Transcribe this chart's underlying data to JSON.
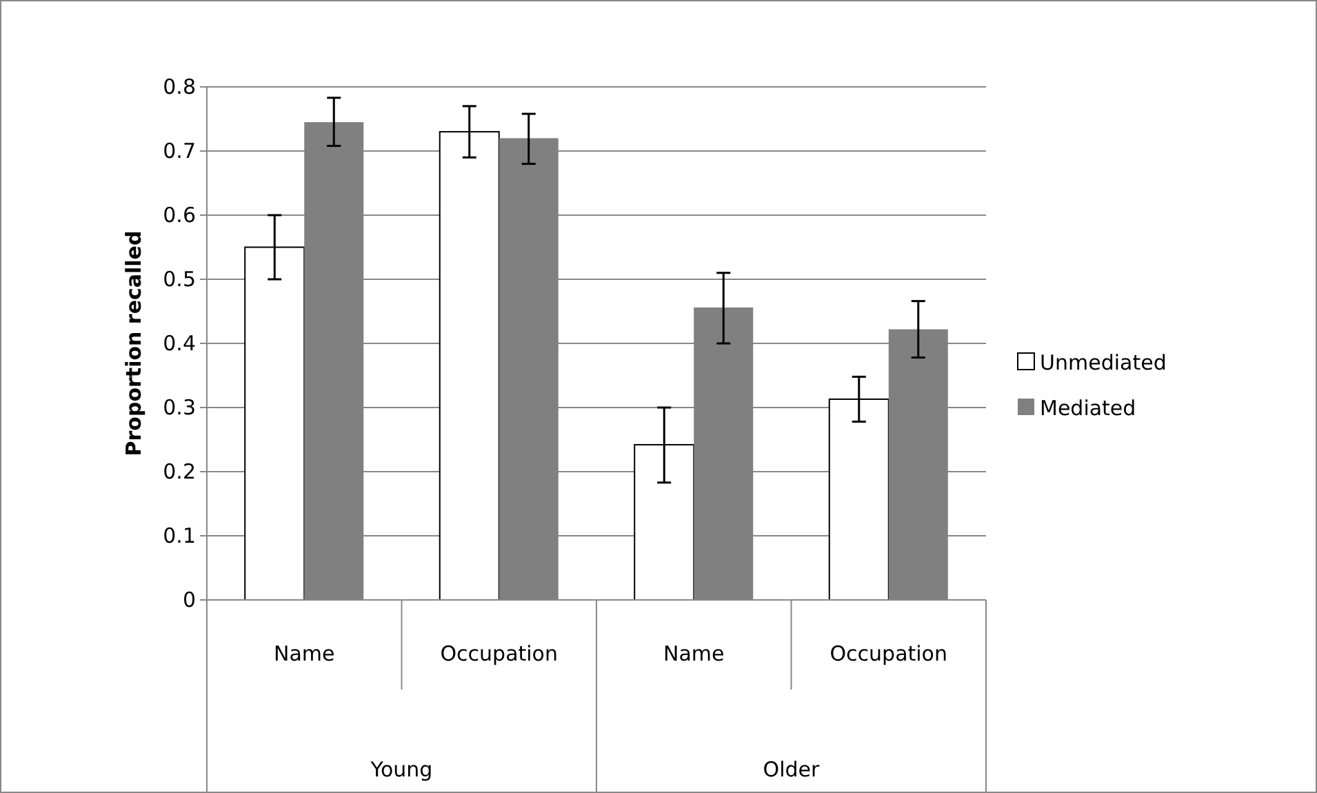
{
  "chart_data": {
    "type": "bar",
    "ylabel": "Proportion recalled",
    "categories": [
      "Name",
      "Occupation",
      "Name",
      "Occupation"
    ],
    "annotations": [
      "Young",
      "Older"
    ],
    "series": [
      {
        "name": "Unmediated",
        "color": "#ffffff",
        "values": [
          0.55,
          0.73,
          0.242,
          0.313
        ],
        "errors": [
          [
            0.5,
            0.6
          ],
          [
            0.69,
            0.77
          ],
          [
            0.183,
            0.3
          ],
          [
            0.278,
            0.348
          ]
        ]
      },
      {
        "name": "Mediated",
        "color": "#808080",
        "values": [
          0.745,
          0.72,
          0.456,
          0.422
        ],
        "errors": [
          [
            0.708,
            0.783
          ],
          [
            0.68,
            0.758
          ],
          [
            0.4,
            0.51
          ],
          [
            0.378,
            0.466
          ]
        ]
      }
    ],
    "ylim": [
      0,
      0.8
    ],
    "yticks": [
      0,
      0.1,
      0.2,
      0.3,
      0.4,
      0.5,
      0.6,
      0.7,
      0.8
    ],
    "grid": "y",
    "legend": "right"
  }
}
